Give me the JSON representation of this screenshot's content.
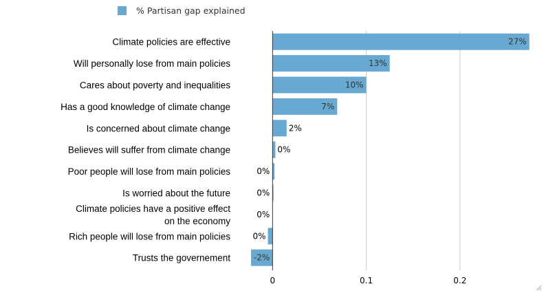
{
  "chart_data": {
    "type": "bar",
    "orientation": "horizontal",
    "legend": {
      "label": "% Partisan gap explained",
      "position": "top-left",
      "color": "#67a9d0"
    },
    "categories": [
      [
        "Climate policies are effective"
      ],
      [
        "Will personally lose from main policies"
      ],
      [
        "Cares about poverty and inequalities"
      ],
      [
        "Has a good knowledge of climate change"
      ],
      [
        "Is concerned about climate change"
      ],
      [
        "Believes will suffer from climate change"
      ],
      [
        "Poor people will lose from main policies"
      ],
      [
        "Is worried about the future"
      ],
      [
        "Climate policies have a positive effect",
        "on the economy"
      ],
      [
        "Rich people will lose from main policies"
      ],
      [
        "Trusts the governement"
      ]
    ],
    "values": [
      0.274,
      0.125,
      0.1,
      0.069,
      0.015,
      0.003,
      0.002,
      0.001,
      0.0,
      -0.005,
      -0.023
    ],
    "data_labels": [
      "27%",
      "13%",
      "10%",
      "7%",
      "2%",
      "0%",
      "0%",
      "0%",
      "0%",
      "0%",
      "-2%"
    ],
    "xlim": [
      -0.023,
      0.275
    ],
    "x_ticks": [
      0,
      0.1,
      0.2
    ],
    "x_tick_labels": [
      "0",
      "0.1",
      "0.2"
    ],
    "grid": true,
    "bar_color": "#67a9d0"
  }
}
